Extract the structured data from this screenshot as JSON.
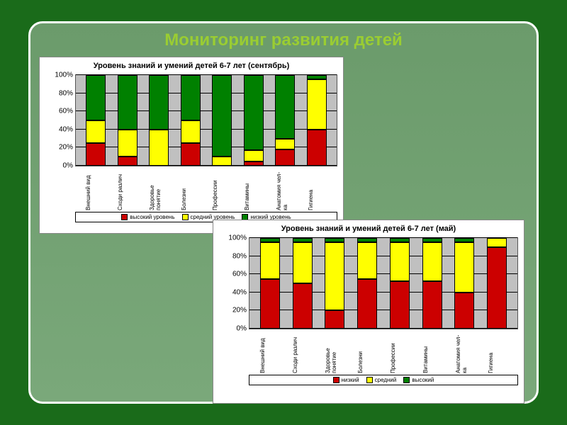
{
  "title": "Мониторинг развития детей",
  "colors": {
    "page_bg": "#1a6b1a",
    "frame_border": "#ffffff",
    "frame_bg": "#7aa87a",
    "title_color": "#9acd32",
    "panel_bg": "#ffffff",
    "plot_bg": "#c0c0c0",
    "grid": "#000000",
    "series_low": "#cc0000",
    "series_mid": "#ffff00",
    "series_high": "#008000"
  },
  "chart1": {
    "type": "stacked-bar-100",
    "title": "Уровень знаний и умений детей 6-7 лет (сентябрь)",
    "title_fontsize": 11,
    "ylim": [
      0,
      100
    ],
    "ytick_step": 20,
    "yticks": [
      "0%",
      "20%",
      "40%",
      "60%",
      "80%",
      "100%"
    ],
    "categories": [
      "Внешний вид",
      "Сходи различ",
      "Здоровье понятие",
      "Болезни",
      "Профессии",
      "Витамины",
      "Анатомия чел-ка",
      "Гигиена"
    ],
    "series": {
      "high": {
        "label": "высокий уровень",
        "color": "#cc0000",
        "values": [
          25,
          10,
          0,
          25,
          0,
          5,
          18,
          40
        ]
      },
      "mid": {
        "label": "средний уровень",
        "color": "#ffff00",
        "values": [
          25,
          30,
          40,
          25,
          10,
          12,
          12,
          55
        ]
      },
      "low": {
        "label": "низкий уровень",
        "color": "#008000",
        "values": [
          50,
          60,
          60,
          50,
          90,
          83,
          70,
          5
        ]
      }
    },
    "legend_order": [
      "high",
      "mid",
      "low"
    ]
  },
  "chart2": {
    "type": "stacked-bar-100",
    "title": "Уровень знаний и умений детей 6-7 лет (май)",
    "title_fontsize": 11,
    "ylim": [
      0,
      100
    ],
    "ytick_step": 20,
    "yticks": [
      "0%",
      "20%",
      "40%",
      "60%",
      "80%",
      "100%"
    ],
    "categories": [
      "Внешний вид",
      "Сходи различ",
      "Здоровье понятие",
      "Болезни",
      "Профессии",
      "Витамины",
      "Анатомия чел-ка",
      "Гигиена"
    ],
    "series": {
      "low": {
        "label": "низкий",
        "color": "#cc0000",
        "values": [
          55,
          50,
          20,
          55,
          52,
          52,
          40,
          90
        ]
      },
      "mid": {
        "label": "средний",
        "color": "#ffff00",
        "values": [
          40,
          45,
          75,
          40,
          43,
          43,
          55,
          10
        ]
      },
      "high": {
        "label": "высокий",
        "color": "#008000",
        "values": [
          5,
          5,
          5,
          5,
          5,
          5,
          5,
          0
        ]
      }
    },
    "legend_order": [
      "low",
      "mid",
      "high"
    ]
  }
}
